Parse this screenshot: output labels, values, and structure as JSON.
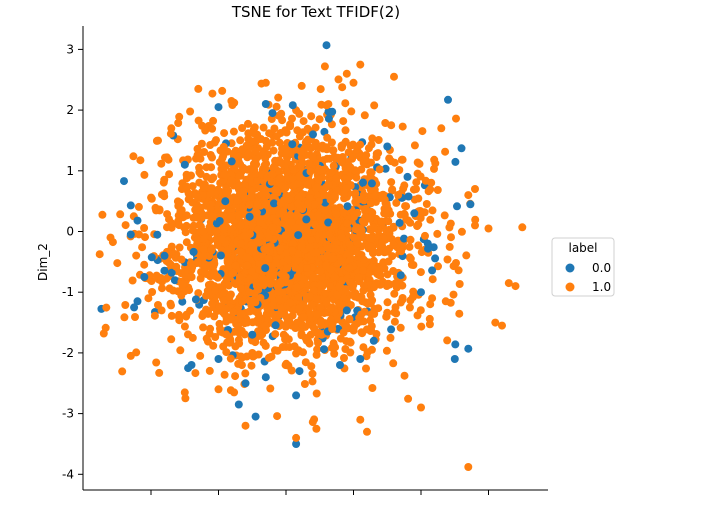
{
  "chart_data": {
    "type": "scatter",
    "title": "TSNE for Text TFIDF(2)",
    "xlabel": "",
    "ylabel": "Dim_2",
    "ylim": [
      -4.3,
      3.3
    ],
    "y_ticks": [
      "-4",
      "-3",
      "-2",
      "-1",
      "0",
      "1",
      "2",
      "3"
    ],
    "grid": false,
    "legend": {
      "title": "label",
      "placement": "right",
      "entries": [
        "0.0",
        "1.0"
      ]
    },
    "colors": {
      "0.0": "#1f77b4",
      "1.0": "#ff7f0e"
    },
    "series": [
      {
        "name": "0.0",
        "points": [
          [
            0.6,
            3.07
          ],
          [
            2.4,
            2.17
          ],
          [
            -1.0,
            2.05
          ],
          [
            -0.3,
            2.1
          ],
          [
            0.1,
            2.08
          ],
          [
            -0.2,
            1.95
          ],
          [
            2.6,
            1.37
          ],
          [
            -2.4,
            0.83
          ],
          [
            -2.3,
            0.43
          ],
          [
            -2.2,
            0.18
          ],
          [
            -2.3,
            -0.05
          ],
          [
            1.9,
            0.3
          ],
          [
            2.1,
            -0.2
          ],
          [
            -2.1,
            -0.75
          ],
          [
            -2.2,
            -1.15
          ],
          [
            -2.25,
            -1.25
          ],
          [
            1.7,
            -0.72
          ],
          [
            2.0,
            -1.0
          ],
          [
            2.7,
            -1.93
          ],
          [
            2.5,
            -2.1
          ],
          [
            -1.4,
            -2.2
          ],
          [
            -1.45,
            -2.25
          ],
          [
            -1.0,
            -2.1
          ],
          [
            -0.6,
            -2.5
          ],
          [
            -0.3,
            -2.4
          ],
          [
            0.2,
            -2.3
          ],
          [
            -0.7,
            -2.85
          ],
          [
            -0.45,
            -3.05
          ],
          [
            0.15,
            -3.5
          ],
          [
            0.15,
            -2.7
          ],
          [
            0.8,
            -2.2
          ],
          [
            1.1,
            -2.1
          ],
          [
            1.3,
            -1.8
          ],
          [
            -0.5,
            -1.7
          ],
          [
            0.4,
            1.6
          ],
          [
            1.5,
            1.4
          ],
          [
            -1.5,
            1.1
          ],
          [
            1.8,
            0.9
          ],
          [
            -1.8,
            -0.4
          ],
          [
            0.9,
            -1.3
          ],
          [
            -0.9,
            0.5
          ],
          [
            0.3,
            0.2
          ]
        ]
      },
      {
        "name": "1.0",
        "points": [
          [
            -2.7,
            -1.68
          ],
          [
            -2.3,
            -2.05
          ],
          [
            -2.5,
            -0.52
          ],
          [
            -2.6,
            -0.1
          ],
          [
            -1.5,
            -2.65
          ],
          [
            2.7,
            -3.88
          ],
          [
            1.1,
            2.75
          ],
          [
            1.6,
            2.55
          ],
          [
            -1.3,
            2.35
          ],
          [
            -0.3,
            2.45
          ],
          [
            3.5,
            0.07
          ],
          [
            3.3,
            -0.85
          ],
          [
            3.4,
            -0.9
          ],
          [
            3.1,
            -1.5
          ],
          [
            3.2,
            -1.55
          ],
          [
            0.45,
            -3.25
          ],
          [
            1.1,
            -3.1
          ],
          [
            1.2,
            -3.3
          ],
          [
            2.0,
            -2.9
          ],
          [
            -0.6,
            -3.2
          ],
          [
            0.15,
            -3.4
          ],
          [
            -1.0,
            -2.6
          ],
          [
            2.8,
            0.1
          ],
          [
            3.0,
            0.05
          ],
          [
            2.7,
            0.6
          ],
          [
            2.8,
            0.7
          ],
          [
            0.9,
            2.6
          ],
          [
            1.0,
            2.45
          ],
          [
            -1.7,
            1.7
          ],
          [
            2.3,
            1.7
          ]
        ]
      }
    ]
  }
}
